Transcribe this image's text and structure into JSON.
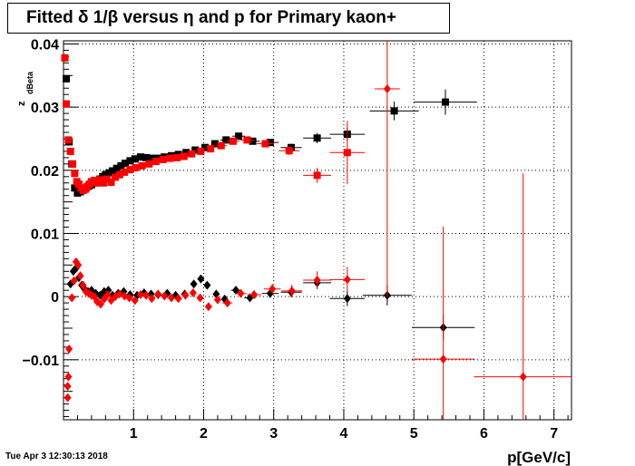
{
  "title": "Fitted δ 1/β versus η and p for Primary kaon+",
  "timestamp": "Tue Apr  3 12:30:13 2018",
  "chart_data": {
    "type": "scatter",
    "title": "Fitted δ 1/β versus η and p for Primary kaon+",
    "xlabel": "p[GeV/c]",
    "ylabel": "z",
    "ylabel_subscript": "dBeta",
    "xlim": [
      0.0,
      7.25
    ],
    "ylim": [
      -0.0195,
      0.0405
    ],
    "xticks": [
      "1",
      "2",
      "3",
      "4",
      "5",
      "6",
      "7"
    ],
    "yticks": [
      "−0.01",
      "0",
      "0.01",
      "0.02",
      "0.03",
      "0.04"
    ],
    "grid": true,
    "series": [
      {
        "marker": "square",
        "color": "#000000",
        "points": [
          [
            0.04,
            0.0345,
            0,
            0.0005
          ],
          [
            0.08,
            0.0245,
            0,
            0.0004
          ],
          [
            0.12,
            0.021,
            0,
            0.0003
          ],
          [
            0.16,
            0.0172,
            0,
            0.0003
          ],
          [
            0.2,
            0.0164,
            0,
            0.0003
          ],
          [
            0.24,
            0.0166,
            0,
            0.0003
          ],
          [
            0.28,
            0.017,
            0,
            0.0003
          ],
          [
            0.32,
            0.0172,
            0,
            0.0003
          ],
          [
            0.36,
            0.0175,
            0,
            0.0003
          ],
          [
            0.4,
            0.0177,
            0,
            0.0003
          ],
          [
            0.44,
            0.018,
            0,
            0.0003
          ],
          [
            0.48,
            0.0183,
            0,
            0.0003
          ],
          [
            0.52,
            0.0186,
            0,
            0.0003
          ],
          [
            0.56,
            0.019,
            0,
            0.0003
          ],
          [
            0.6,
            0.0193,
            0,
            0.0003
          ],
          [
            0.65,
            0.0196,
            0,
            0.0003
          ],
          [
            0.7,
            0.0199,
            0,
            0.0003
          ],
          [
            0.76,
            0.0203,
            0,
            0.0003
          ],
          [
            0.82,
            0.0207,
            0,
            0.0003
          ],
          [
            0.88,
            0.0211,
            0,
            0.0003
          ],
          [
            0.95,
            0.0215,
            0,
            0.0003
          ],
          [
            1.02,
            0.0218,
            0,
            0.0003
          ],
          [
            1.1,
            0.0221,
            0,
            0.0003
          ],
          [
            1.18,
            0.022,
            0,
            0.0003
          ],
          [
            1.26,
            0.0219,
            0,
            0.0003
          ],
          [
            1.35,
            0.0219,
            0,
            0.0003
          ],
          [
            1.44,
            0.0221,
            0,
            0.0003
          ],
          [
            1.54,
            0.0223,
            0,
            0.0003
          ],
          [
            1.64,
            0.0225,
            0,
            0.0003
          ],
          [
            1.75,
            0.0228,
            0,
            0.0003
          ],
          [
            1.88,
            0.0232,
            0,
            0.0003
          ],
          [
            2.02,
            0.0236,
            0,
            0.0003
          ],
          [
            2.16,
            0.0242,
            0,
            0.0003
          ],
          [
            2.32,
            0.0248,
            0.08,
            0.0004
          ],
          [
            2.5,
            0.0254,
            0.09,
            0.0004
          ],
          [
            2.7,
            0.0246,
            0.1,
            0.0004
          ],
          [
            2.95,
            0.0244,
            0.12,
            0.0005
          ],
          [
            3.25,
            0.0236,
            0.15,
            0.0006
          ],
          [
            3.62,
            0.0251,
            0.2,
            0.0008
          ],
          [
            4.05,
            0.0257,
            0.25,
            0.001
          ],
          [
            4.72,
            0.0294,
            0.35,
            0.0015
          ],
          [
            5.45,
            0.0308,
            0.45,
            0.002
          ]
        ]
      },
      {
        "marker": "square",
        "color": "#ff0000",
        "points": [
          [
            0.02,
            0.0378,
            0,
            0.0006
          ],
          [
            0.04,
            0.0305,
            0,
            0.0005
          ],
          [
            0.07,
            0.0248,
            0,
            0.0004
          ],
          [
            0.1,
            0.023,
            0,
            0.0004
          ],
          [
            0.13,
            0.021,
            0,
            0.0003
          ],
          [
            0.16,
            0.0195,
            0,
            0.0003
          ],
          [
            0.19,
            0.0182,
            0,
            0.0003
          ],
          [
            0.22,
            0.0178,
            0,
            0.0003
          ],
          [
            0.25,
            0.0172,
            0,
            0.0003
          ],
          [
            0.28,
            0.0168,
            0,
            0.0003
          ],
          [
            0.31,
            0.017,
            0,
            0.0003
          ],
          [
            0.34,
            0.0174,
            0,
            0.0003
          ],
          [
            0.37,
            0.0178,
            0,
            0.0003
          ],
          [
            0.4,
            0.0182,
            0,
            0.0003
          ],
          [
            0.44,
            0.0184,
            0,
            0.0003
          ],
          [
            0.48,
            0.018,
            0,
            0.0003
          ],
          [
            0.52,
            0.0185,
            0,
            0.0003
          ],
          [
            0.57,
            0.018,
            0,
            0.0003
          ],
          [
            0.62,
            0.0186,
            0,
            0.0003
          ],
          [
            0.68,
            0.0181,
            0,
            0.0003
          ],
          [
            0.74,
            0.0189,
            0,
            0.0003
          ],
          [
            0.8,
            0.0193,
            0,
            0.0003
          ],
          [
            0.87,
            0.0197,
            0,
            0.0003
          ],
          [
            0.95,
            0.0201,
            0,
            0.0003
          ],
          [
            1.03,
            0.0204,
            0,
            0.0003
          ],
          [
            1.12,
            0.0207,
            0,
            0.0003
          ],
          [
            1.22,
            0.021,
            0,
            0.0003
          ],
          [
            1.32,
            0.0214,
            0,
            0.0003
          ],
          [
            1.42,
            0.0217,
            0,
            0.0003
          ],
          [
            1.52,
            0.0219,
            0,
            0.0003
          ],
          [
            1.62,
            0.022,
            0,
            0.0003
          ],
          [
            1.72,
            0.0222,
            0,
            0.0003
          ],
          [
            1.83,
            0.0226,
            0,
            0.0003
          ],
          [
            1.96,
            0.023,
            0,
            0.0003
          ],
          [
            2.1,
            0.0234,
            0,
            0.0003
          ],
          [
            2.25,
            0.0239,
            0.08,
            0.0004
          ],
          [
            2.42,
            0.0246,
            0.09,
            0.0004
          ],
          [
            2.62,
            0.0248,
            0.1,
            0.0004
          ],
          [
            2.88,
            0.0242,
            0.12,
            0.0005
          ],
          [
            3.22,
            0.0231,
            0.15,
            0.0007
          ],
          [
            3.62,
            0.0192,
            0.2,
            0.0012
          ],
          [
            4.05,
            0.0228,
            0.25,
            0.005
          ]
        ]
      },
      {
        "marker": "diamond",
        "color": "#000000",
        "points": [
          [
            0.1,
            0.002,
            0,
            0.0005
          ],
          [
            0.14,
            0.004,
            0,
            0.0005
          ],
          [
            0.18,
            0.0045,
            0,
            0.0005
          ],
          [
            0.22,
            0.003,
            0,
            0.0004
          ],
          [
            0.26,
            0.0018,
            0,
            0.0004
          ],
          [
            0.3,
            0.0012,
            0,
            0.0004
          ],
          [
            0.35,
            0.0008,
            0,
            0.0004
          ],
          [
            0.4,
            0.001,
            0,
            0.0004
          ],
          [
            0.46,
            0.0005,
            0,
            0.0004
          ],
          [
            0.52,
            0.0002,
            0,
            0.0004
          ],
          [
            0.58,
            0.0008,
            0,
            0.0004
          ],
          [
            0.64,
            0.001,
            0,
            0.0004
          ],
          [
            0.7,
            0.0002,
            0,
            0.0004
          ],
          [
            0.78,
            0.0005,
            0,
            0.0004
          ],
          [
            0.86,
            0.0008,
            0,
            0.0004
          ],
          [
            0.95,
            0.0003,
            0,
            0.0004
          ],
          [
            1.05,
            0.0002,
            0,
            0.0004
          ],
          [
            1.15,
            0.0006,
            0,
            0.0004
          ],
          [
            1.25,
            0.0004,
            0,
            0.0004
          ],
          [
            1.35,
            0.0003,
            0,
            0.0004
          ],
          [
            1.48,
            0.0005,
            0,
            0.0004
          ],
          [
            1.6,
            0.0002,
            0,
            0.0004
          ],
          [
            1.73,
            0.0004,
            0,
            0.0004
          ],
          [
            1.86,
            0.002,
            0,
            0.0004
          ],
          [
            1.96,
            0.0028,
            0,
            0.0004
          ],
          [
            2.05,
            0.0018,
            0,
            0.0004
          ],
          [
            2.18,
            0.0004,
            0,
            0.0004
          ],
          [
            2.3,
            -0.0004,
            0,
            0.0004
          ],
          [
            2.46,
            0.001,
            0.07,
            0.0005
          ],
          [
            2.66,
            -0.0002,
            0.08,
            0.0006
          ],
          [
            2.95,
            0.0005,
            0.12,
            0.0007
          ],
          [
            3.25,
            0.0007,
            0.15,
            0.0008
          ],
          [
            3.62,
            0.0022,
            0.2,
            0.001
          ],
          [
            4.05,
            -0.0003,
            0.25,
            0.0012
          ],
          [
            4.62,
            0.0002,
            0.35,
            0.0016
          ],
          [
            5.42,
            -0.0049,
            0.45,
            0.002
          ]
        ]
      },
      {
        "marker": "diamond",
        "color": "#ff0000",
        "points": [
          [
            0.08,
            -0.0083,
            0,
            0.0005
          ],
          [
            0.07,
            -0.0127,
            0,
            0.0005
          ],
          [
            0.06,
            -0.0142,
            0,
            0.0005
          ],
          [
            0.06,
            -0.016,
            0,
            0.0006
          ],
          [
            0.12,
            -0.0002,
            0,
            0.0004
          ],
          [
            0.15,
            0.0025,
            0,
            0.0004
          ],
          [
            0.18,
            0.0055,
            0,
            0.0004
          ],
          [
            0.21,
            0.005,
            0,
            0.0004
          ],
          [
            0.24,
            0.0033,
            0,
            0.0004
          ],
          [
            0.28,
            0.0018,
            0,
            0.0004
          ],
          [
            0.32,
            0.0008,
            0,
            0.0004
          ],
          [
            0.36,
            0.0005,
            0,
            0.0004
          ],
          [
            0.4,
            0.0002,
            0,
            0.0004
          ],
          [
            0.44,
            0.0,
            0,
            0.0004
          ],
          [
            0.48,
            -0.0008,
            0,
            0.0004
          ],
          [
            0.53,
            -0.0012,
            0,
            0.0004
          ],
          [
            0.58,
            -0.0004,
            0,
            0.0004
          ],
          [
            0.63,
            0.0003,
            0,
            0.0004
          ],
          [
            0.68,
            -0.0006,
            0,
            0.0004
          ],
          [
            0.74,
            0.0,
            0,
            0.0004
          ],
          [
            0.8,
            0.0004,
            0,
            0.0004
          ],
          [
            0.87,
            0.0001,
            0,
            0.0004
          ],
          [
            0.94,
            -0.0002,
            0,
            0.0004
          ],
          [
            1.02,
            -0.0006,
            0,
            0.0004
          ],
          [
            1.1,
            0.0003,
            0,
            0.0004
          ],
          [
            1.18,
            0.0002,
            0,
            0.0004
          ],
          [
            1.26,
            -0.0003,
            0,
            0.0004
          ],
          [
            1.35,
            0.0004,
            0,
            0.0004
          ],
          [
            1.44,
            0.0001,
            0,
            0.0004
          ],
          [
            1.54,
            -0.0002,
            0,
            0.0004
          ],
          [
            1.64,
            -0.0003,
            0,
            0.0004
          ],
          [
            1.74,
            0.0002,
            0,
            0.0004
          ],
          [
            1.85,
            0.0006,
            0,
            0.0004
          ],
          [
            1.95,
            -0.0002,
            0,
            0.0004
          ],
          [
            2.07,
            -0.0016,
            0,
            0.0004
          ],
          [
            2.2,
            -0.0005,
            0,
            0.0004
          ],
          [
            2.34,
            -0.001,
            0.07,
            0.0005
          ],
          [
            2.53,
            0.0005,
            0.08,
            0.0006
          ],
          [
            2.72,
            0.0003,
            0.1,
            0.0007
          ],
          [
            2.98,
            0.0012,
            0.12,
            0.0008
          ],
          [
            3.26,
            0.0009,
            0.15,
            0.001
          ],
          [
            3.62,
            0.0026,
            0.2,
            0.0014
          ],
          [
            4.05,
            0.0027,
            0.25,
            0.002
          ],
          [
            4.62,
            0.0329,
            0.18,
            0.033
          ],
          [
            5.42,
            -0.0099,
            0.45,
            0.021
          ],
          [
            6.56,
            -0.0127,
            0.7,
            0.0322
          ]
        ]
      }
    ]
  }
}
